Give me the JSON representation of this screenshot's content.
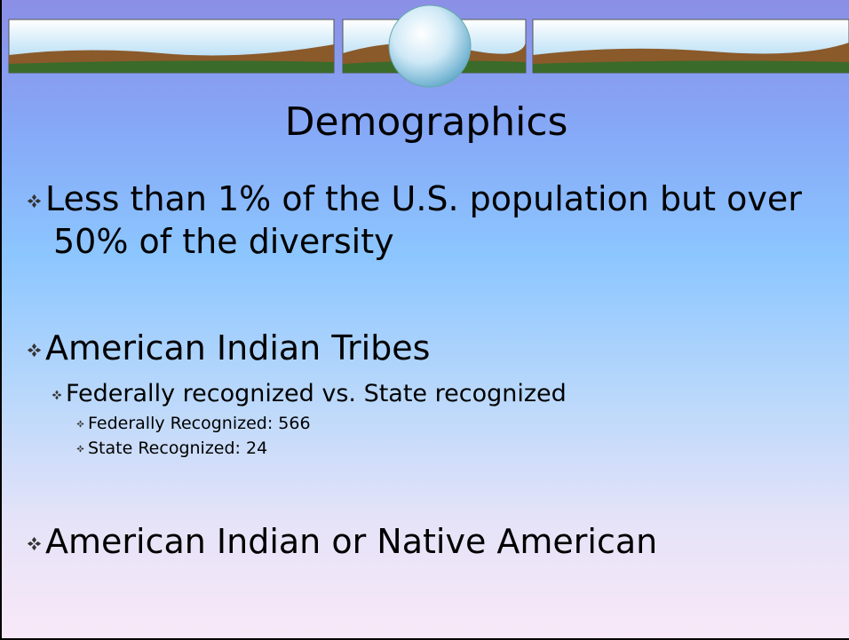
{
  "slide": {
    "title": "Demographics",
    "bullets": [
      {
        "text": "Less than 1% of the U.S. population but over 50% of the diversity"
      },
      {
        "text": "American Indian Tribes",
        "children": [
          {
            "text": "Federally recognized vs. State recognized",
            "children": [
              {
                "text": "Federally Recognized: 566"
              },
              {
                "text": "State Recognized: 24"
              }
            ]
          }
        ]
      },
      {
        "text": "American Indian or Native American"
      }
    ]
  }
}
